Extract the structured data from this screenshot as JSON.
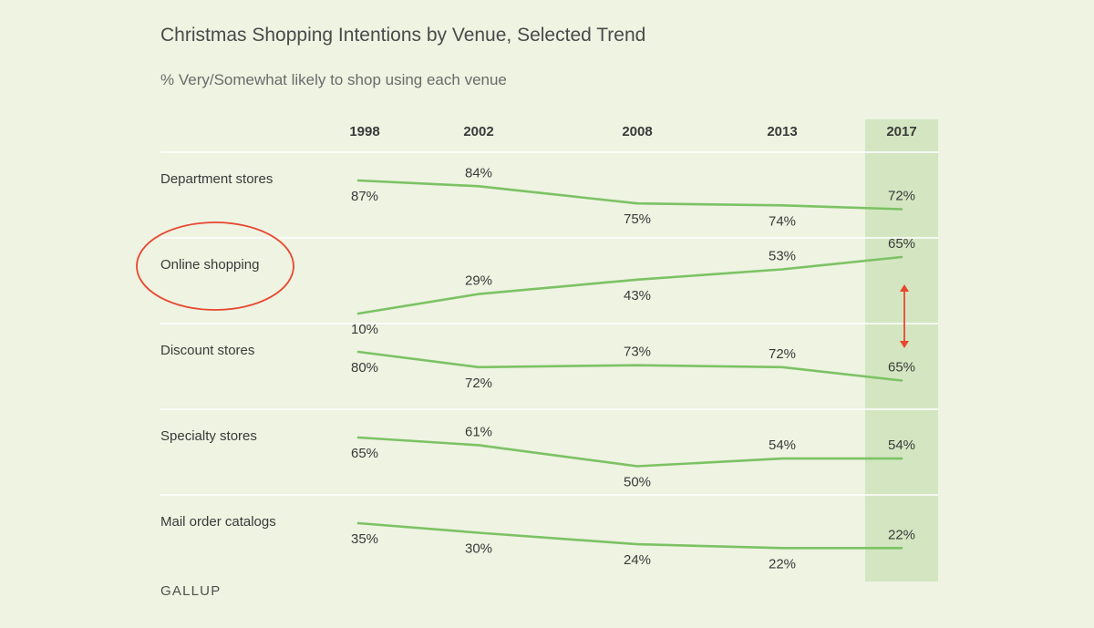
{
  "title": "Christmas Shopping Intentions by Venue, Selected Trend",
  "subtitle": "% Very/Somewhat likely to shop using each venue",
  "source": "GALLUP",
  "colors": {
    "line": "#7cc264",
    "highlight_band": "#d3e6c1",
    "rule": "#ffffff",
    "annotation": "#e8472f",
    "text": "#3a3a3a"
  },
  "chart_data": {
    "type": "line",
    "x": [
      "1998",
      "2002",
      "2008",
      "2013",
      "2017"
    ],
    "highlighted_x": "2017",
    "value_suffix": "%",
    "series": [
      {
        "name": "Department stores",
        "values": [
          87,
          84,
          75,
          74,
          72
        ]
      },
      {
        "name": "Online shopping",
        "values": [
          10,
          29,
          43,
          53,
          65
        ]
      },
      {
        "name": "Discount stores",
        "values": [
          80,
          72,
          73,
          72,
          65
        ]
      },
      {
        "name": "Specialty stores",
        "values": [
          65,
          61,
          50,
          54,
          54
        ]
      },
      {
        "name": "Mail order catalogs",
        "values": [
          35,
          30,
          24,
          22,
          22
        ]
      }
    ],
    "annotations": [
      {
        "type": "circle",
        "target": "Online shopping"
      },
      {
        "type": "double-arrow",
        "x": "2017",
        "between": [
          "Online shopping",
          "Discount stores"
        ]
      }
    ]
  }
}
